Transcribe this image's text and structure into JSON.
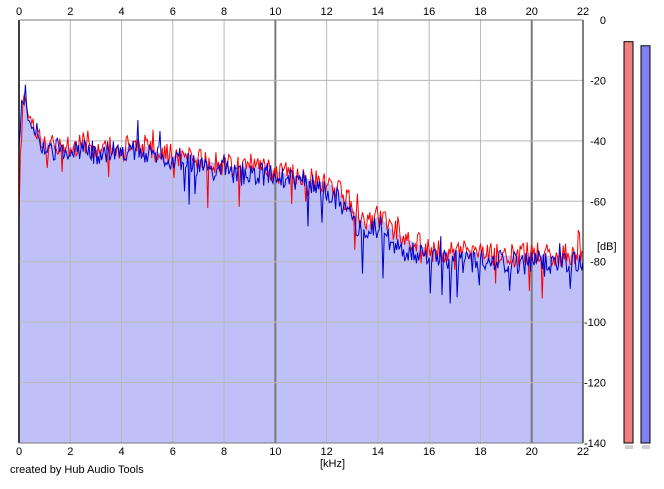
{
  "chart_data": {
    "type": "line",
    "title": "",
    "xlabel": "[kHz]",
    "ylabel": "[dB]",
    "xlim": [
      0,
      22
    ],
    "ylim": [
      -140,
      0
    ],
    "x_ticks": [
      0,
      2,
      4,
      6,
      8,
      10,
      12,
      14,
      16,
      18,
      20,
      22
    ],
    "y_ticks": [
      0,
      -20,
      -40,
      -60,
      -80,
      -100,
      -120,
      -140
    ],
    "y_tick_labels": [
      "0",
      "-20",
      "-40",
      "-60",
      "-80",
      "-100",
      "-120",
      "-140"
    ],
    "grid": true,
    "legend": "none",
    "fill_color": "#c0c0f8",
    "series": [
      {
        "color": "#ff0000",
        "x": [
          0,
          0.1,
          0.2,
          0.3,
          0.4,
          0.6,
          0.8,
          1.0,
          1.2,
          1.5,
          2.0,
          2.5,
          3.0,
          3.5,
          4.0,
          4.5,
          5.0,
          5.5,
          6.0,
          6.5,
          7.0,
          7.5,
          8.0,
          8.5,
          9.0,
          9.5,
          10.0,
          10.5,
          11.0,
          11.5,
          12.0,
          12.3,
          12.6,
          13.0,
          13.3,
          13.6,
          14.0,
          14.3,
          14.6,
          15.0,
          15.5,
          16.0,
          16.5,
          17.0,
          17.5,
          18.0,
          18.5,
          19.0,
          19.5,
          20.0,
          20.5,
          21.0,
          21.5,
          22.0
        ],
        "y": [
          -58,
          -29,
          -24,
          -28,
          -33,
          -36,
          -38,
          -40,
          -41,
          -42,
          -42,
          -41,
          -43,
          -42,
          -43,
          -41,
          -42,
          -44,
          -45,
          -44,
          -46,
          -47,
          -48,
          -49,
          -48,
          -49,
          -50,
          -51,
          -52,
          -53,
          -54,
          -55,
          -58,
          -62,
          -66,
          -68,
          -65,
          -67,
          -70,
          -72,
          -74,
          -76,
          -77,
          -76,
          -77,
          -77,
          -78,
          -78,
          -78,
          -77,
          -78,
          -78,
          -78,
          -77
        ]
      },
      {
        "color": "#0000cc",
        "x": [
          0,
          0.1,
          0.2,
          0.3,
          0.4,
          0.6,
          0.8,
          1.0,
          1.2,
          1.5,
          2.0,
          2.5,
          3.0,
          3.5,
          4.0,
          4.5,
          5.0,
          5.5,
          6.0,
          6.5,
          7.0,
          7.5,
          8.0,
          8.5,
          9.0,
          9.5,
          10.0,
          10.5,
          11.0,
          11.5,
          12.0,
          12.3,
          12.6,
          13.0,
          13.3,
          13.6,
          14.0,
          14.3,
          14.6,
          15.0,
          15.5,
          16.0,
          16.5,
          17.0,
          17.5,
          18.0,
          18.5,
          19.0,
          19.5,
          20.0,
          20.5,
          21.0,
          21.5,
          22.0
        ],
        "y": [
          -46,
          -28,
          -26,
          -30,
          -34,
          -37,
          -39,
          -42,
          -42,
          -43,
          -44,
          -43,
          -44,
          -43,
          -44,
          -43,
          -44,
          -45,
          -47,
          -46,
          -49,
          -50,
          -50,
          -52,
          -50,
          -51,
          -51,
          -53,
          -53,
          -55,
          -56,
          -58,
          -62,
          -65,
          -70,
          -72,
          -68,
          -71,
          -74,
          -76,
          -78,
          -79,
          -80,
          -80,
          -80,
          -80,
          -80,
          -80,
          -81,
          -80,
          -81,
          -80,
          -81,
          -80
        ]
      }
    ]
  },
  "meters": [
    {
      "color": "#f08080",
      "level": 0.986
    },
    {
      "color": "#8080f0",
      "level": 0.976
    }
  ],
  "credit": "created by Hub Audio Tools"
}
